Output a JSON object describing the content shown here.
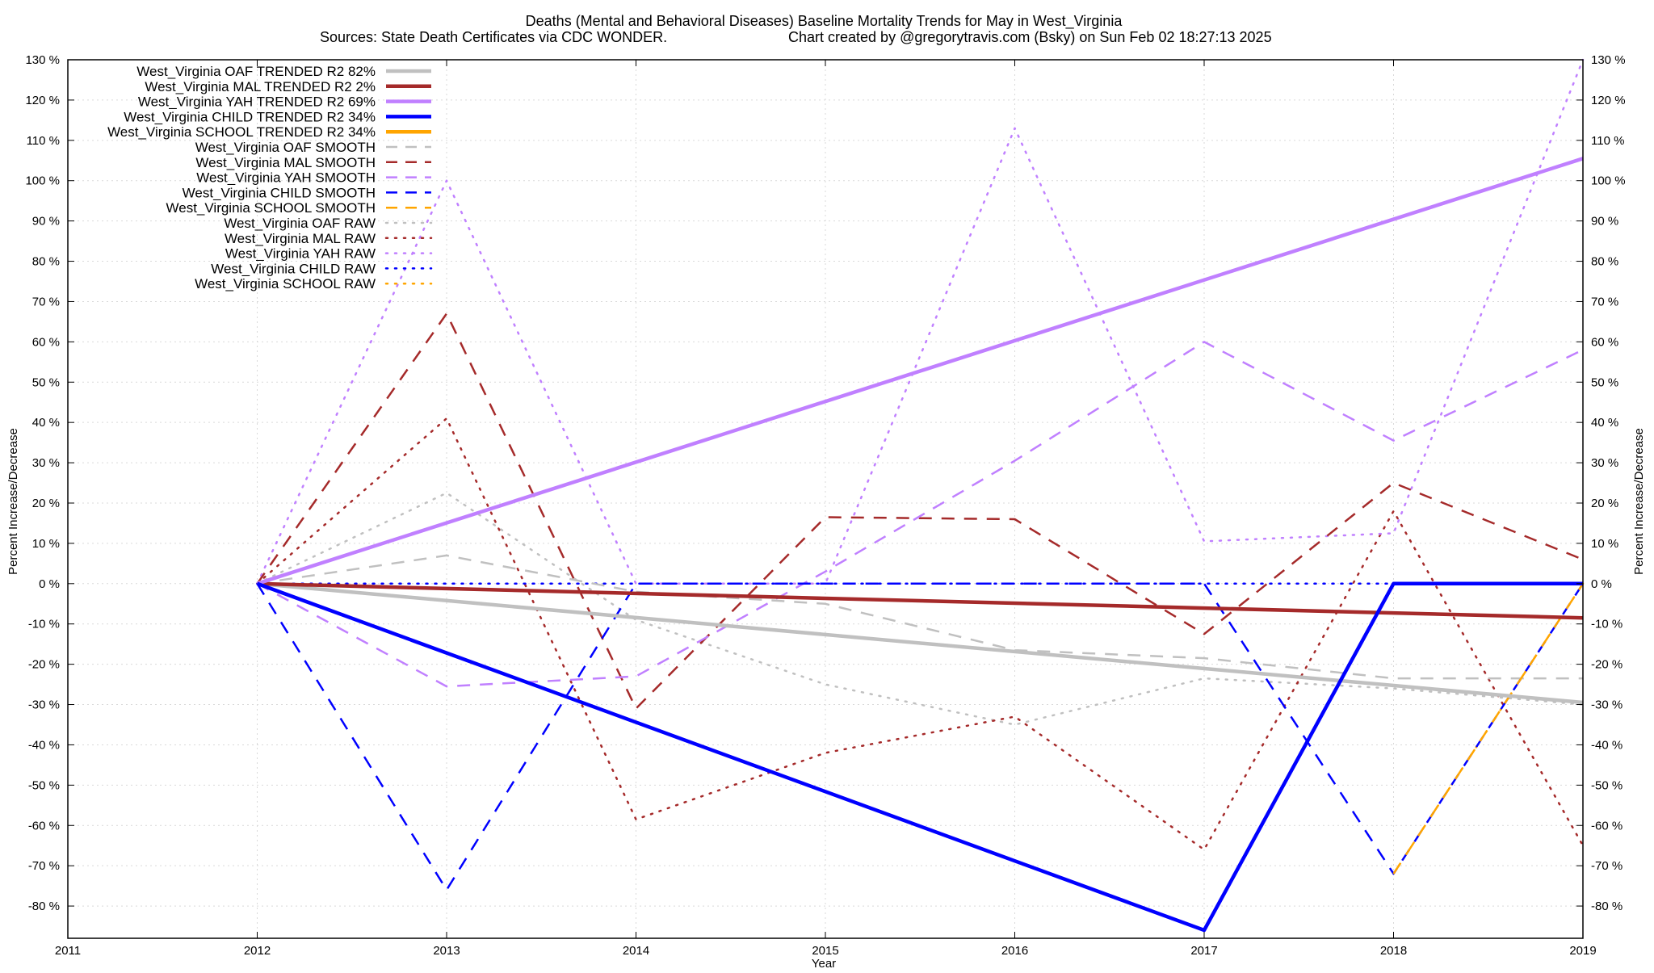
{
  "chart_data": {
    "type": "line",
    "title_line1": "Deaths (Mental and Behavioral Diseases)  Baseline Mortality Trends for May in West_Virginia",
    "title_line2_left": "Sources: State Death Certificates via CDC WONDER.",
    "title_line2_right": "Chart created by @gregorytravis.com (Bsky) on Sun Feb 02 18:27:13 2025",
    "xlabel": "Year",
    "ylabel_left": "Percent Increase/Decrease",
    "ylabel_right": "Percent Increase/Decrease",
    "xlim": [
      2011,
      2019
    ],
    "ylim": [
      -88,
      130
    ],
    "x_ticks": [
      2011,
      2012,
      2013,
      2014,
      2015,
      2016,
      2017,
      2018,
      2019
    ],
    "x_tick_labels": [
      "2011",
      "2012",
      "2013",
      "2014",
      "2015",
      "2016",
      "2017",
      "2018",
      "2019"
    ],
    "y_ticks": [
      130,
      120,
      110,
      100,
      90,
      80,
      70,
      60,
      50,
      40,
      30,
      20,
      10,
      0,
      -10,
      -20,
      -30,
      -40,
      -50,
      -60,
      -70,
      -80
    ],
    "y_tick_labels": [
      "130 %",
      "120 %",
      "110 %",
      "100 %",
      "90 %",
      "80 %",
      "70 %",
      "60 %",
      "50 %",
      "40 %",
      "30 %",
      "20 %",
      "10 %",
      "0 %",
      "-10 %",
      "-20 %",
      "-30 %",
      "-40 %",
      "-50 %",
      "-60 %",
      "-70 %",
      "-80 %"
    ],
    "grid": true,
    "legend_position": "top-left",
    "series": [
      {
        "name": "West_Virginia OAF TRENDED R2  82%",
        "color": "#c0c0c0",
        "style": "solid",
        "x": [
          2012,
          2019
        ],
        "values": [
          0,
          -29.5
        ]
      },
      {
        "name": "West_Virginia MAL TRENDED R2   2%",
        "color": "#a52a2a",
        "style": "solid",
        "x": [
          2012,
          2019
        ],
        "values": [
          0,
          -8.5
        ]
      },
      {
        "name": "West_Virginia YAH TRENDED R2  69%",
        "color": "#c080ff",
        "style": "solid",
        "x": [
          2012,
          2019
        ],
        "values": [
          0,
          105.5
        ]
      },
      {
        "name": "West_Virginia CHILD TRENDED R2  34%",
        "color": "#0000ff",
        "style": "solid",
        "x": [
          2012,
          2017,
          2018,
          2019
        ],
        "values": [
          0,
          -86,
          0,
          0
        ]
      },
      {
        "name": "West_Virginia SCHOOL TRENDED R2  34%",
        "color": "#ffa500",
        "style": "solid",
        "x": [],
        "values": []
      },
      {
        "name": "West_Virginia OAF SMOOTH",
        "color": "#c0c0c0",
        "style": "dashed",
        "x": [
          2012,
          2013,
          2014,
          2015,
          2016,
          2017,
          2018,
          2019
        ],
        "values": [
          0,
          7,
          -2,
          -5,
          -16.5,
          -18.5,
          -23.5,
          -23.5
        ]
      },
      {
        "name": "West_Virginia MAL SMOOTH",
        "color": "#a52a2a",
        "style": "dashed",
        "x": [
          2012,
          2013,
          2014,
          2015,
          2016,
          2017,
          2018,
          2019
        ],
        "values": [
          0,
          67,
          -31,
          16.5,
          16,
          -12.5,
          25,
          6
        ]
      },
      {
        "name": "West_Virginia YAH SMOOTH",
        "color": "#c080ff",
        "style": "dashed",
        "x": [
          2012,
          2013,
          2014,
          2015,
          2016,
          2017,
          2018,
          2019
        ],
        "values": [
          0,
          -25.5,
          -23,
          3,
          30.5,
          60,
          35.5,
          58
        ]
      },
      {
        "name": "West_Virginia CHILD SMOOTH",
        "color": "#0000ff",
        "style": "dashed",
        "x": [
          2012,
          2013,
          2014,
          2015,
          2016,
          2017,
          2018,
          2019
        ],
        "values": [
          0,
          -76,
          0,
          0,
          0,
          0,
          -72,
          0
        ]
      },
      {
        "name": "West_Virginia SCHOOL SMOOTH",
        "color": "#ffa500",
        "style": "dashed",
        "x": [
          2018,
          2019
        ],
        "values": [
          -72,
          0
        ]
      },
      {
        "name": "West_Virginia OAF RAW",
        "color": "#c0c0c0",
        "style": "dotted",
        "x": [
          2012,
          2013,
          2014,
          2015,
          2016,
          2017,
          2018,
          2019
        ],
        "values": [
          0,
          22.5,
          -9,
          -25,
          -35,
          -23.5,
          -26,
          -30
        ]
      },
      {
        "name": "West_Virginia MAL RAW",
        "color": "#a52a2a",
        "style": "dotted",
        "x": [
          2012,
          2013,
          2014,
          2015,
          2016,
          2017,
          2018,
          2019
        ],
        "values": [
          0,
          41,
          -58.5,
          -42,
          -33,
          -66,
          18,
          -65
        ]
      },
      {
        "name": "West_Virginia YAH RAW",
        "color": "#c080ff",
        "style": "dotted",
        "x": [
          2012,
          2013,
          2014,
          2015,
          2016,
          2017,
          2018,
          2019
        ],
        "values": [
          0,
          100,
          0,
          0,
          113,
          10.5,
          12.5,
          130
        ]
      },
      {
        "name": "West_Virginia CHILD RAW",
        "color": "#0000ff",
        "style": "dotted",
        "x": [
          2012,
          2013,
          2014,
          2015,
          2016,
          2017,
          2018,
          2019
        ],
        "values": [
          0,
          0,
          0,
          0,
          0,
          0,
          0,
          0
        ]
      },
      {
        "name": "West_Virginia SCHOOL RAW",
        "color": "#ffa500",
        "style": "dotted",
        "x": [
          2018,
          2019
        ],
        "values": [
          -72,
          0
        ]
      }
    ]
  }
}
